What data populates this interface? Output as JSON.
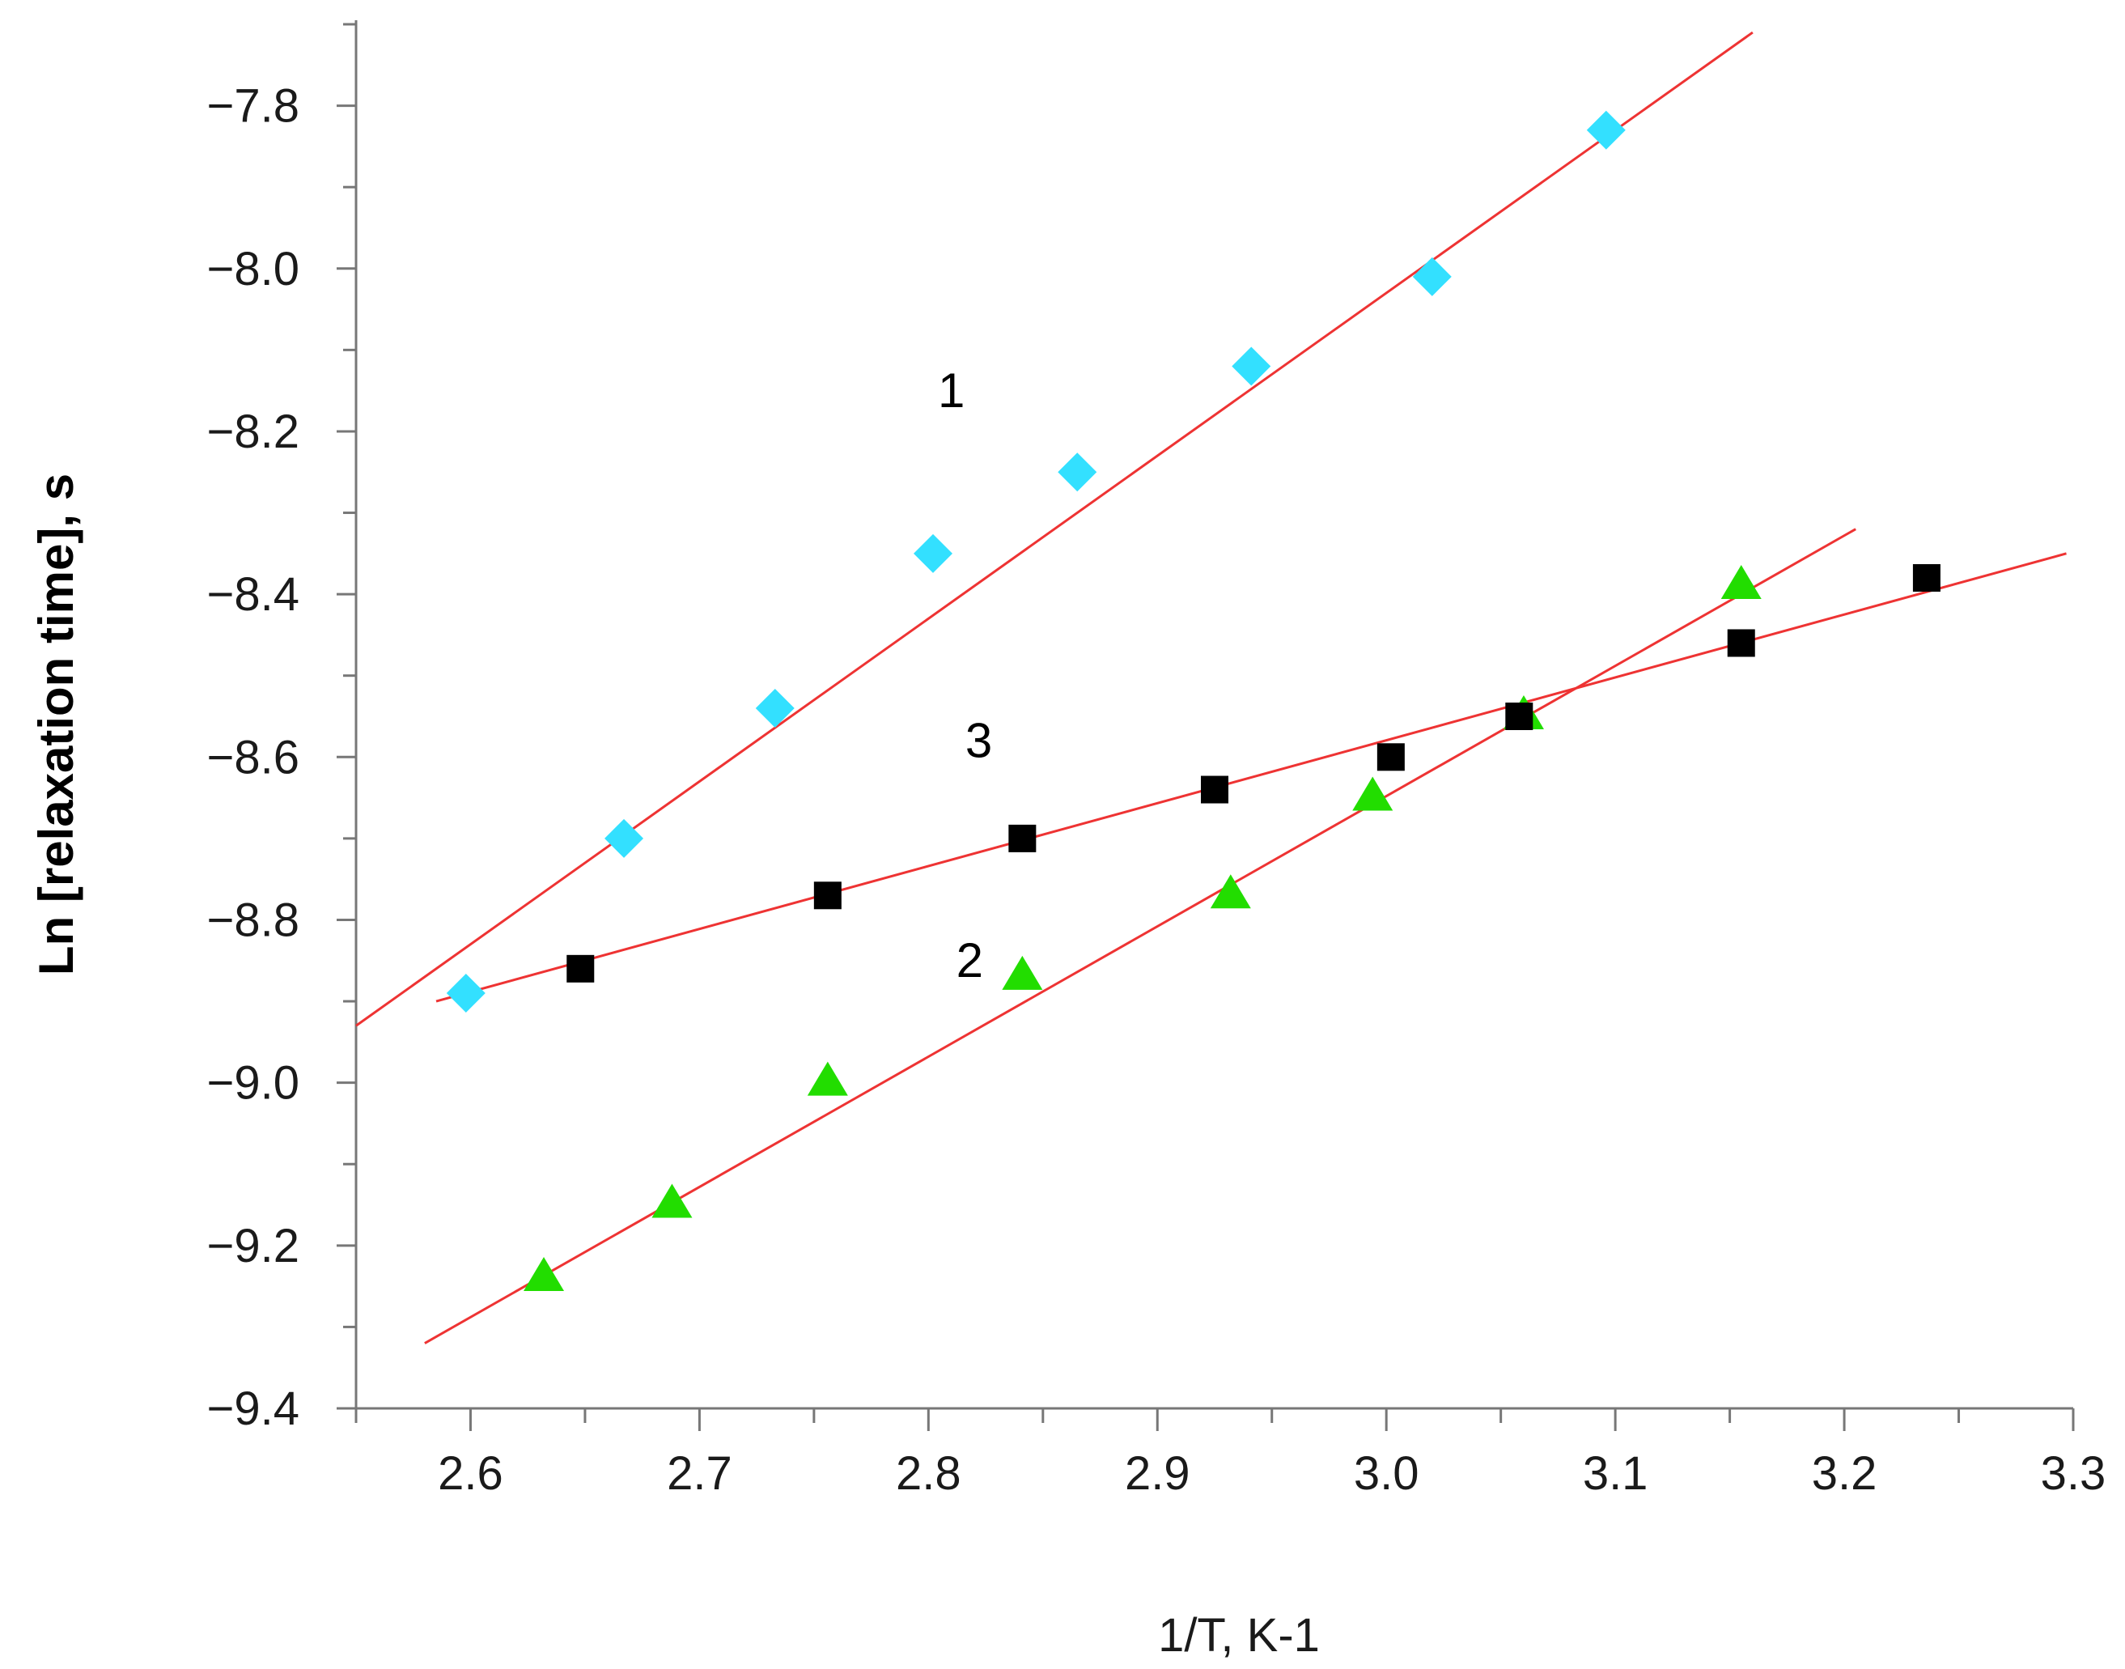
{
  "chart_data": {
    "type": "scatter",
    "title": "",
    "xlabel": "1/T, K-1",
    "ylabel": "Ln [relaxation time], s",
    "xlim": [
      2.55,
      3.3
    ],
    "ylim": [
      -9.4,
      -7.7
    ],
    "x_ticks": [
      2.6,
      2.7,
      2.8,
      2.9,
      3.0,
      3.1,
      3.2,
      3.3
    ],
    "x_tick_labels": [
      "2.6",
      "2.7",
      "2.8",
      "2.9",
      "3.0",
      "3.1",
      "3.2",
      "3.3"
    ],
    "y_ticks": [
      -9.4,
      -9.2,
      -9.0,
      -8.8,
      -8.6,
      -8.4,
      -8.2,
      -8.0,
      -7.8
    ],
    "y_tick_labels": [
      "−9.4",
      "−9.2",
      "−9.0",
      "−8.8",
      "−8.6",
      "−8.4",
      "−8.2",
      "−8.0",
      "−7.8"
    ],
    "grid": false,
    "series": [
      {
        "name": "1",
        "marker": "diamond",
        "color": "#33e0ff",
        "x": [
          2.598,
          2.667,
          2.733,
          2.802,
          2.865,
          2.941,
          3.02,
          3.096
        ],
        "y": [
          -8.89,
          -8.7,
          -8.54,
          -8.35,
          -8.25,
          -8.12,
          -8.01,
          -7.83
        ],
        "fit": {
          "x": [
            2.55,
            3.16
          ],
          "y": [
            -8.93,
            -7.71
          ]
        },
        "label_at": {
          "x": 2.81,
          "y": -8.17
        }
      },
      {
        "name": "2",
        "marker": "triangle",
        "color": "#22dd00",
        "x": [
          2.632,
          2.688,
          2.756,
          2.841,
          2.932,
          2.994,
          3.06,
          3.155
        ],
        "y": [
          -9.24,
          -9.15,
          -9.0,
          -8.87,
          -8.77,
          -8.65,
          -8.55,
          -8.39
        ],
        "fit": {
          "x": [
            2.58,
            3.205
          ],
          "y": [
            -9.32,
            -8.32
          ]
        },
        "label_at": {
          "x": 2.818,
          "y": -8.87
        }
      },
      {
        "name": "3",
        "marker": "square",
        "color": "#000000",
        "x": [
          2.648,
          2.756,
          2.841,
          2.925,
          3.002,
          3.058,
          3.155,
          3.236
        ],
        "y": [
          -8.86,
          -8.77,
          -8.7,
          -8.64,
          -8.6,
          -8.55,
          -8.46,
          -8.38
        ],
        "fit": {
          "x": [
            2.585,
            3.297
          ],
          "y": [
            -8.9,
            -8.35
          ]
        },
        "label_at": {
          "x": 2.822,
          "y": -8.6
        }
      }
    ],
    "fit_color": "#ee3333"
  }
}
